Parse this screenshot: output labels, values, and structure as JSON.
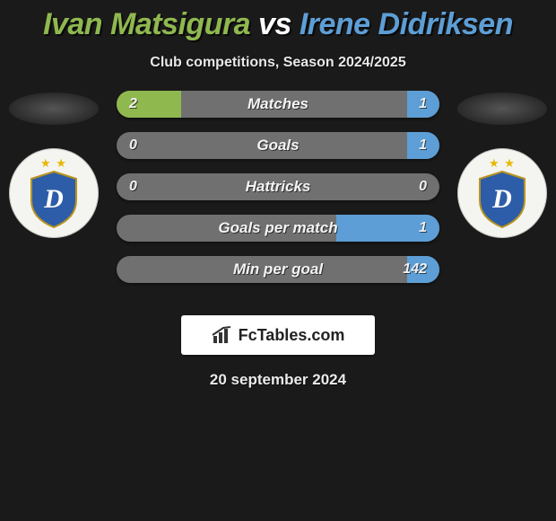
{
  "title": {
    "player1": "Ivan Matsigura",
    "vs": "vs",
    "player2": "Irene Didriksen"
  },
  "subtitle": "Club competitions, Season 2024/2025",
  "date": "20 september 2024",
  "colors": {
    "player1": "#8fb84f",
    "player2": "#5d9ed6",
    "bar_track": "#707070",
    "background": "#1a1a1a",
    "text": "#f0f0f0",
    "badge_bg": "#f4f4f0",
    "badge_shield": "#2d5da8",
    "badge_letter": "#ffffff",
    "star": "#e6b800",
    "brand_bg": "#ffffff",
    "brand_text": "#222222"
  },
  "badge": {
    "stars": "★ ★",
    "letter": "D"
  },
  "brand": {
    "text": "FcTables.com"
  },
  "stats": [
    {
      "label": "Matches",
      "left_value": "2",
      "right_value": "1",
      "left_pct": 20,
      "right_pct": 10
    },
    {
      "label": "Goals",
      "left_value": "0",
      "right_value": "1",
      "left_pct": 0,
      "right_pct": 10
    },
    {
      "label": "Hattricks",
      "left_value": "0",
      "right_value": "0",
      "left_pct": 0,
      "right_pct": 0
    },
    {
      "label": "Goals per match",
      "left_value": "",
      "right_value": "1",
      "left_pct": 0,
      "right_pct": 32
    },
    {
      "label": "Min per goal",
      "left_value": "",
      "right_value": "142",
      "left_pct": 0,
      "right_pct": 10
    }
  ]
}
